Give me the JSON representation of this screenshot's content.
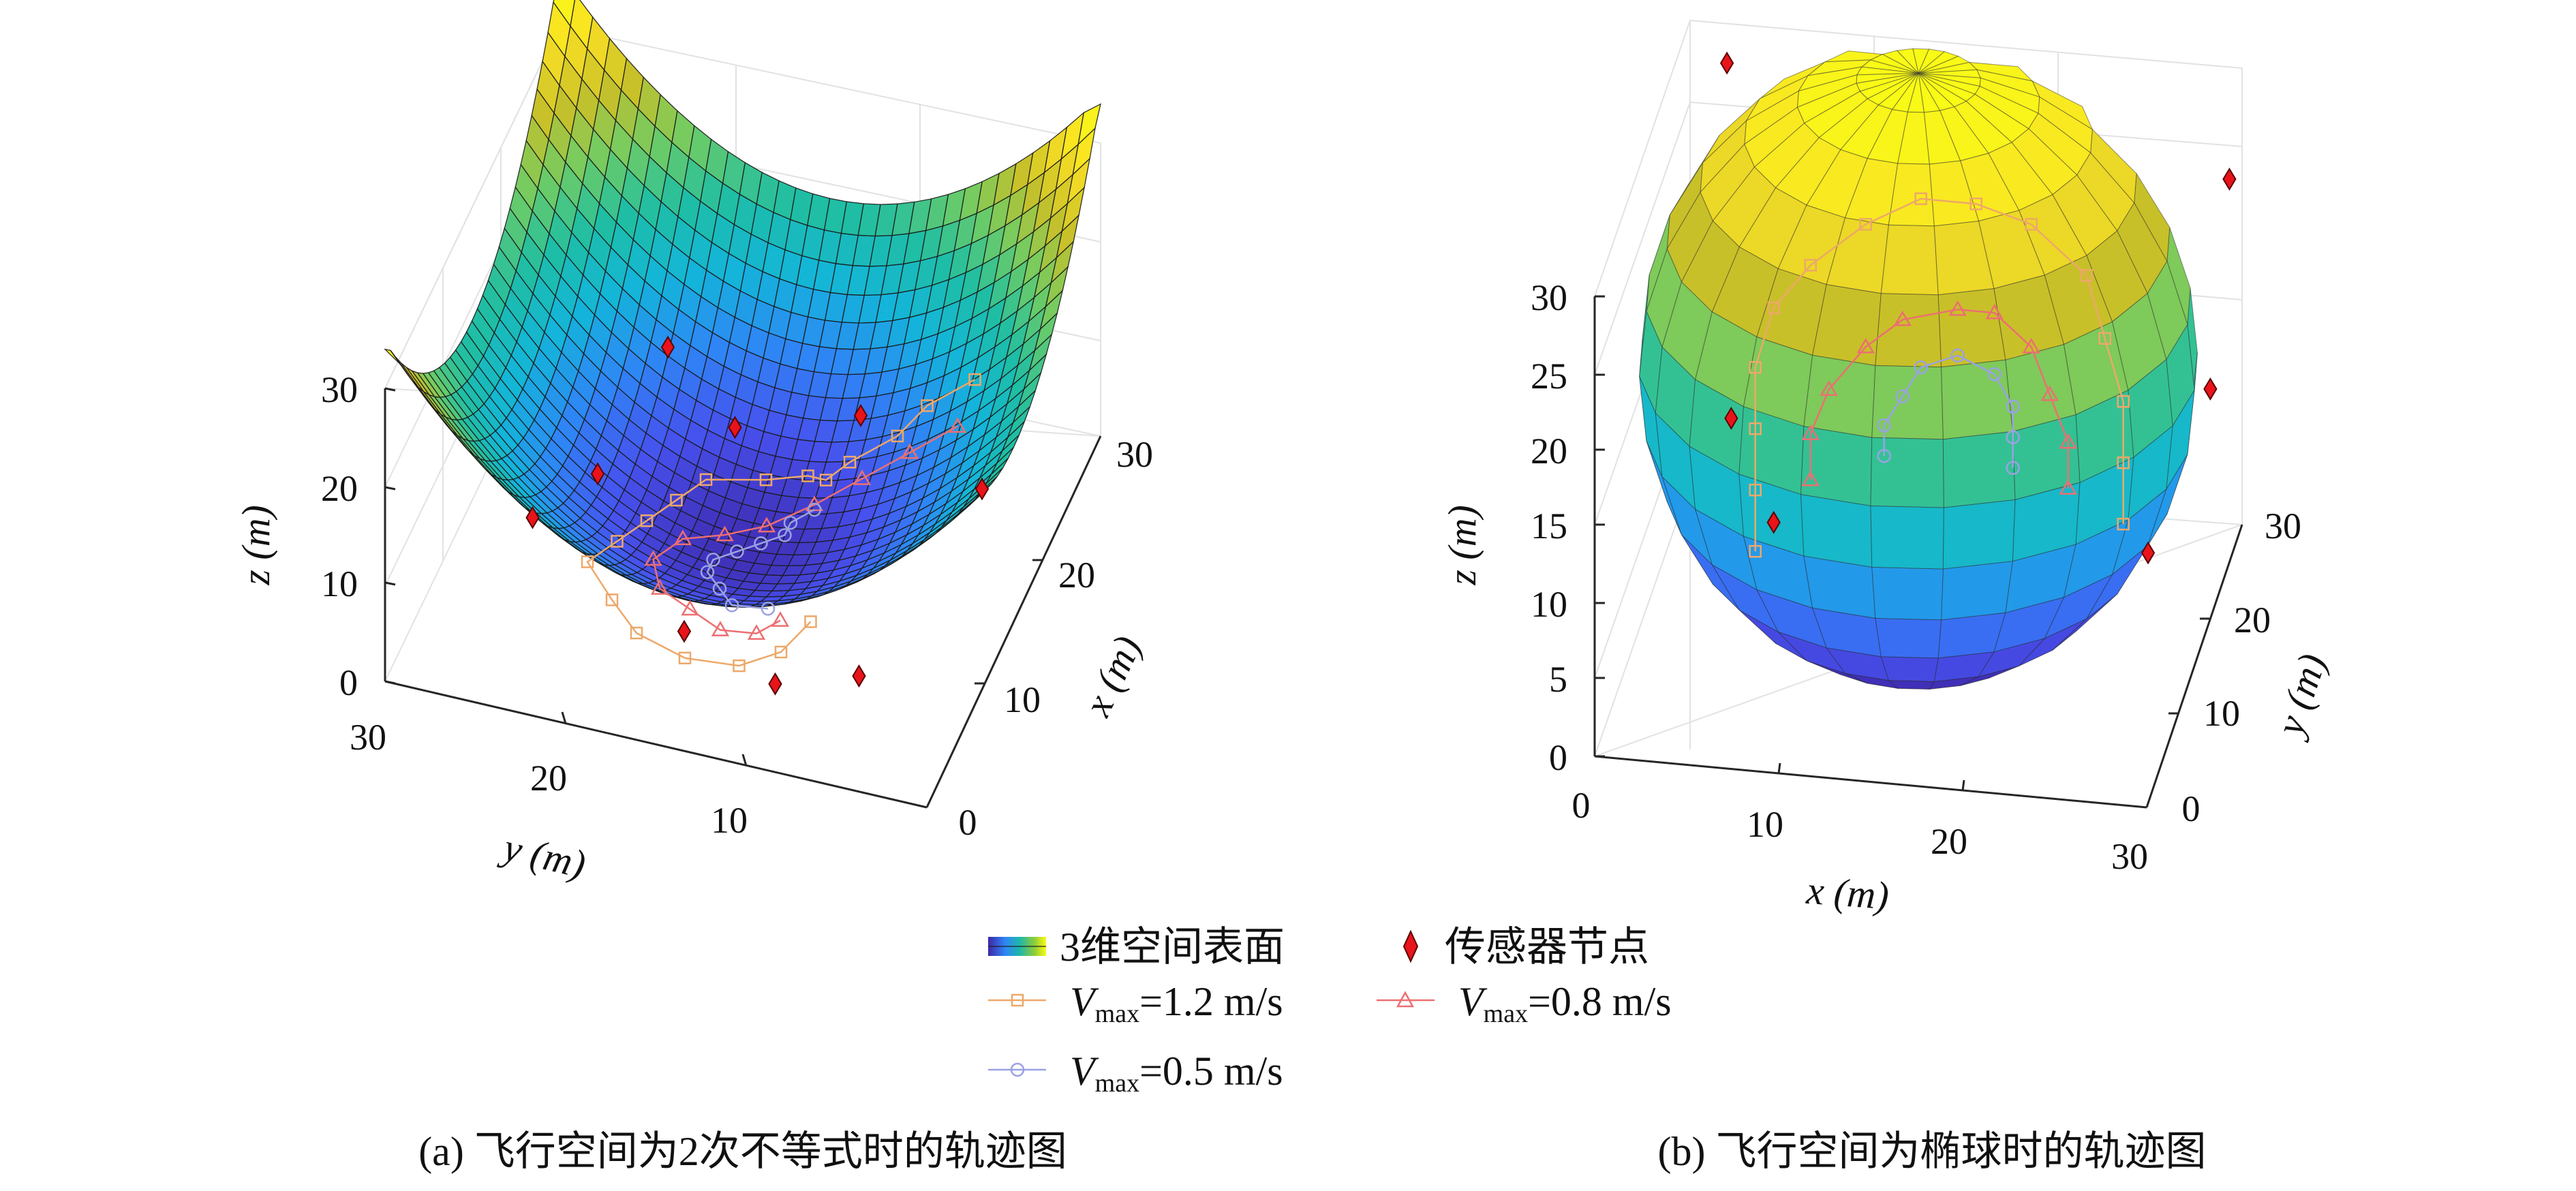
{
  "chart_data": [
    {
      "panel": "a",
      "type": "surface3d",
      "caption": "(a) 飞行空间为2次不等式时的轨迹图",
      "xlabel": "x (m)",
      "ylabel": "y (m)",
      "zlabel": "z (m)",
      "xlim": [
        0,
        30
      ],
      "ylim": [
        0,
        30
      ],
      "zlim": [
        0,
        30
      ],
      "x_ticks": [
        "0",
        "10",
        "20",
        "30"
      ],
      "y_ticks": [
        "30",
        "20",
        "10"
      ],
      "z_ticks": [
        "0",
        "10",
        "20",
        "30"
      ],
      "grid": true,
      "sensors": [
        {
          "x": 18,
          "y": 6,
          "z": 1
        },
        {
          "x": 26,
          "y": 18,
          "z": 2
        },
        {
          "x": 5,
          "y": 20,
          "z": 2
        },
        {
          "x": 22,
          "y": 26,
          "z": 3
        },
        {
          "x": 8,
          "y": 14,
          "z": 1
        },
        {
          "x": 23,
          "y": 12,
          "z": 2
        },
        {
          "x": 27,
          "y": 7,
          "z": 3
        },
        {
          "x": 13,
          "y": 4,
          "z": 2
        },
        {
          "x": 7,
          "y": 24,
          "z": 2
        }
      ],
      "series": [
        {
          "name": "V_max=1.2 m/s",
          "marker": "square",
          "color": "#eda86a",
          "points": [
            [
              8,
              21,
              5
            ],
            [
              6,
              20,
              4
            ],
            [
              5,
              18,
              3
            ],
            [
              5,
              15,
              2.5
            ],
            [
              6,
              12,
              2.5
            ],
            [
              8,
              10,
              2.5
            ],
            [
              10,
              8,
              3
            ],
            [
              12,
              9,
              3
            ],
            [
              14,
              10,
              3
            ],
            [
              16,
              11,
              3
            ],
            [
              18,
              12,
              3
            ],
            [
              19,
              15,
              3
            ],
            [
              20,
              17,
              3
            ],
            [
              20,
              18,
              3
            ],
            [
              21,
              19,
              4
            ],
            [
              23,
              21,
              5
            ],
            [
              25,
              22,
              6
            ],
            [
              27,
              24,
              7
            ]
          ]
        },
        {
          "name": "V_max=0.8 m/s",
          "marker": "triangle",
          "color": "#ec6f72",
          "points": [
            [
              9,
              19,
              3
            ],
            [
              8,
              18,
              2.5
            ],
            [
              8,
              16,
              2
            ],
            [
              9,
              14,
              2
            ],
            [
              10,
              12,
              2
            ],
            [
              12,
              11,
              2
            ],
            [
              14,
              12,
              2
            ],
            [
              15,
              14,
              2
            ],
            [
              16,
              16,
              2.5
            ],
            [
              18,
              18,
              3
            ],
            [
              20,
              20,
              4
            ],
            [
              22,
              22,
              5
            ],
            [
              24,
              24,
              6
            ]
          ]
        },
        {
          "name": "V_max=0.5 m/s",
          "marker": "circle",
          "color": "#9aa2e2",
          "points": [
            [
              10,
              18,
              2.5
            ],
            [
              10,
              16,
              2
            ],
            [
              11,
              15,
              2
            ],
            [
              12,
              14,
              2
            ],
            [
              13,
              14,
              2
            ],
            [
              14,
              15,
              2
            ],
            [
              15,
              16,
              2
            ],
            [
              16,
              17,
              2
            ],
            [
              17,
              17,
              2
            ],
            [
              18,
              18,
              2.5
            ]
          ]
        }
      ]
    },
    {
      "panel": "b",
      "type": "surface3d",
      "caption": "(b) 飞行空间为椭球时的轨迹图",
      "xlabel": "x (m)",
      "ylabel": "y (m)",
      "zlabel": "z (m)",
      "xlim": [
        0,
        30
      ],
      "ylim": [
        0,
        30
      ],
      "zlim": [
        0,
        30
      ],
      "x_ticks": [
        "0",
        "10",
        "20",
        "30"
      ],
      "y_ticks": [
        "0",
        "10",
        "20",
        "30"
      ],
      "z_ticks": [
        "0",
        "5",
        "10",
        "15",
        "20",
        "25",
        "30"
      ],
      "grid": true,
      "sensors": [
        {
          "x": 2,
          "y": 30,
          "z": 27
        },
        {
          "x": 24,
          "y": 30,
          "z": 38
        },
        {
          "x": 30,
          "y": 26,
          "z": 25
        },
        {
          "x": 30,
          "y": 20,
          "z": 15
        },
        {
          "x": 5,
          "y": 14,
          "z": 14
        },
        {
          "x": 8,
          "y": 10,
          "z": 10
        },
        {
          "x": 28,
          "y": 12,
          "z": 9
        }
      ],
      "series": [
        {
          "name": "V_max=1.2 m/s",
          "marker": "square",
          "color": "#eda86a",
          "points": [
            [
              7,
              10,
              8
            ],
            [
              7,
              10,
              12
            ],
            [
              7,
              10,
              16
            ],
            [
              7,
              10,
              20
            ],
            [
              8,
              10,
              24
            ],
            [
              10,
              10,
              27
            ],
            [
              13,
              10,
              30
            ],
            [
              16,
              10,
              32
            ],
            [
              19,
              10,
              32
            ],
            [
              22,
              10,
              31
            ],
            [
              25,
              10,
              28
            ],
            [
              26,
              10,
              24
            ],
            [
              27,
              10,
              20
            ],
            [
              27,
              10,
              16
            ],
            [
              27,
              10,
              12
            ]
          ]
        },
        {
          "name": "V_max=0.8 m/s",
          "marker": "triangle",
          "color": "#ec6f72",
          "points": [
            [
              10,
              10,
              13
            ],
            [
              10,
              10,
              16
            ],
            [
              11,
              10,
              19
            ],
            [
              13,
              10,
              22
            ],
            [
              15,
              10,
              24
            ],
            [
              18,
              10,
              25
            ],
            [
              20,
              10,
              25
            ],
            [
              22,
              10,
              23
            ],
            [
              23,
              10,
              20
            ],
            [
              24,
              10,
              17
            ],
            [
              24,
              10,
              14
            ]
          ]
        },
        {
          "name": "V_max=0.5 m/s",
          "marker": "circle",
          "color": "#9aa2e2",
          "points": [
            [
              14,
              10,
              15
            ],
            [
              14,
              10,
              17
            ],
            [
              15,
              10,
              19
            ],
            [
              16,
              10,
              21
            ],
            [
              18,
              10,
              22
            ],
            [
              20,
              10,
              21
            ],
            [
              21,
              10,
              19
            ],
            [
              21,
              10,
              17
            ],
            [
              21,
              10,
              15
            ]
          ]
        }
      ]
    }
  ],
  "legend": {
    "surface": "3维空间表面",
    "sensor": "传感器节点",
    "s12": "=1.2 m/s",
    "s08": "=0.8 m/s",
    "s05": "=0.5 m/s",
    "v": "V",
    "sub": "max"
  },
  "colors": {
    "surface_low": "#3e26a8",
    "surface_mid": "#1fb8a8",
    "surface_high": "#f9fb15",
    "sensor": "#e8141a",
    "s12": "#eda86a",
    "s08": "#ec6f72",
    "s05": "#9aa2e2"
  }
}
